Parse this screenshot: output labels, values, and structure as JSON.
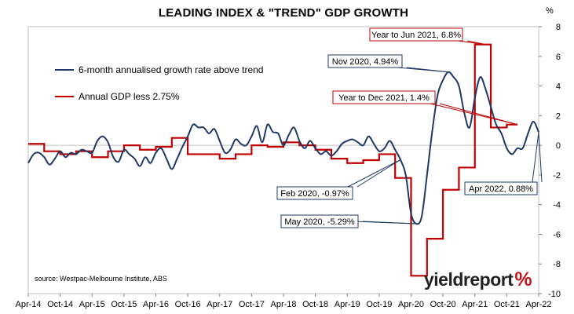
{
  "chart_data": {
    "type": "line",
    "title": "LEADING INDEX & \"TREND\" GDP GROWTH",
    "y_unit": "%",
    "ylim": [
      -10,
      8
    ],
    "y_ticks": [
      8,
      6,
      4,
      2,
      0,
      -2,
      -4,
      -6,
      -8,
      -10
    ],
    "x_ticks": [
      "Apr-14",
      "Oct-14",
      "Apr-15",
      "Oct-15",
      "Apr-16",
      "Oct-16",
      "Apr-17",
      "Oct-17",
      "Apr-18",
      "Oct-18",
      "Apr-19",
      "Oct-19",
      "Apr-20",
      "Oct-20",
      "Apr-21",
      "Oct-21",
      "Apr-22"
    ],
    "grid": false,
    "legend_placement": "top-left",
    "series": [
      {
        "name": "6-month annualised growth rate above trend",
        "color": "#1f3864",
        "points": [
          [
            "2014-04",
            -1.2
          ],
          [
            "2014-05",
            -0.6
          ],
          [
            "2014-06",
            -0.5
          ],
          [
            "2014-07",
            -0.8
          ],
          [
            "2014-08",
            -1.3
          ],
          [
            "2014-09",
            -0.9
          ],
          [
            "2014-10",
            -0.4
          ],
          [
            "2014-11",
            -0.8
          ],
          [
            "2014-12",
            -0.5
          ],
          [
            "2015-01",
            -0.6
          ],
          [
            "2015-02",
            -0.3
          ],
          [
            "2015-03",
            -0.4
          ],
          [
            "2015-04",
            -0.5
          ],
          [
            "2015-05",
            0.3
          ],
          [
            "2015-06",
            0.6
          ],
          [
            "2015-07",
            0.2
          ],
          [
            "2015-08",
            -0.8
          ],
          [
            "2015-09",
            -1.1
          ],
          [
            "2015-10",
            -0.3
          ],
          [
            "2015-11",
            -0.6
          ],
          [
            "2015-12",
            -0.9
          ],
          [
            "2016-01",
            -1.4
          ],
          [
            "2016-02",
            -0.8
          ],
          [
            "2016-03",
            -1.2
          ],
          [
            "2016-04",
            -0.5
          ],
          [
            "2016-05",
            -0.2
          ],
          [
            "2016-06",
            -0.9
          ],
          [
            "2016-07",
            -1.6
          ],
          [
            "2016-08",
            -0.9
          ],
          [
            "2016-09",
            -0.1
          ],
          [
            "2016-10",
            0.6
          ],
          [
            "2016-11",
            1.4
          ],
          [
            "2016-12",
            1.2
          ],
          [
            "2017-01",
            1.2
          ],
          [
            "2017-02",
            0.8
          ],
          [
            "2017-03",
            1.1
          ],
          [
            "2017-04",
            0.3
          ],
          [
            "2017-05",
            -0.5
          ],
          [
            "2017-06",
            -0.3
          ],
          [
            "2017-07",
            0.4
          ],
          [
            "2017-08",
            0.1
          ],
          [
            "2017-09",
            0.0
          ],
          [
            "2017-10",
            0.6
          ],
          [
            "2017-11",
            1.3
          ],
          [
            "2017-12",
            0.2
          ],
          [
            "2018-01",
            1.4
          ],
          [
            "2018-02",
            0.9
          ],
          [
            "2018-03",
            0.8
          ],
          [
            "2018-04",
            0.0
          ],
          [
            "2018-05",
            0.7
          ],
          [
            "2018-06",
            1.2
          ],
          [
            "2018-07",
            0.3
          ],
          [
            "2018-08",
            -0.2
          ],
          [
            "2018-09",
            0.3
          ],
          [
            "2018-10",
            -0.2
          ],
          [
            "2018-11",
            -0.6
          ],
          [
            "2018-12",
            -0.4
          ],
          [
            "2019-01",
            -0.7
          ],
          [
            "2019-02",
            -0.4
          ],
          [
            "2019-03",
            0.1
          ],
          [
            "2019-04",
            0.3
          ],
          [
            "2019-05",
            0.4
          ],
          [
            "2019-06",
            0.2
          ],
          [
            "2019-07",
            0.0
          ],
          [
            "2019-08",
            0.6
          ],
          [
            "2019-09",
            0.1
          ],
          [
            "2019-10",
            -0.4
          ],
          [
            "2019-11",
            -0.2
          ],
          [
            "2019-12",
            0.3
          ],
          [
            "2020-01",
            -0.3
          ],
          [
            "2020-02",
            -0.97
          ],
          [
            "2020-03",
            -2.0
          ],
          [
            "2020-04",
            -4.6
          ],
          [
            "2020-05",
            -5.29
          ],
          [
            "2020-06",
            -4.8
          ],
          [
            "2020-07",
            -2.0
          ],
          [
            "2020-08",
            1.0
          ],
          [
            "2020-09",
            3.4
          ],
          [
            "2020-10",
            4.4
          ],
          [
            "2020-11",
            4.94
          ],
          [
            "2020-12",
            4.6
          ],
          [
            "2021-01",
            4.0
          ],
          [
            "2021-02",
            2.2
          ],
          [
            "2021-03",
            1.2
          ],
          [
            "2021-04",
            3.2
          ],
          [
            "2021-05",
            4.6
          ],
          [
            "2021-06",
            3.8
          ],
          [
            "2021-07",
            2.6
          ],
          [
            "2021-08",
            1.4
          ],
          [
            "2021-09",
            0.8
          ],
          [
            "2021-10",
            -0.2
          ],
          [
            "2021-11",
            -0.6
          ],
          [
            "2021-12",
            -0.2
          ],
          [
            "2022-01",
            -0.2
          ],
          [
            "2022-02",
            0.8
          ],
          [
            "2022-03",
            1.6
          ],
          [
            "2022-04",
            0.88
          ]
        ]
      },
      {
        "name": "Annual GDP less 2.75%",
        "color": "#c00000",
        "steps": [
          [
            "2014-04",
            0.1
          ],
          [
            "2014-07",
            -0.4
          ],
          [
            "2014-10",
            -0.6
          ],
          [
            "2015-01",
            -0.4
          ],
          [
            "2015-04",
            -0.8
          ],
          [
            "2015-07",
            -0.4
          ],
          [
            "2015-10",
            0.0
          ],
          [
            "2016-01",
            -0.3
          ],
          [
            "2016-04",
            -0.1
          ],
          [
            "2016-07",
            0.5
          ],
          [
            "2016-10",
            -0.6
          ],
          [
            "2017-01",
            -0.6
          ],
          [
            "2017-04",
            -0.9
          ],
          [
            "2017-07",
            -0.6
          ],
          [
            "2017-10",
            0.0
          ],
          [
            "2018-01",
            -0.1
          ],
          [
            "2018-04",
            0.2
          ],
          [
            "2018-07",
            0.0
          ],
          [
            "2018-10",
            -0.3
          ],
          [
            "2019-01",
            -0.9
          ],
          [
            "2019-04",
            -1.2
          ],
          [
            "2019-07",
            -1.0
          ],
          [
            "2019-10",
            -0.6
          ],
          [
            "2020-01",
            -2.2
          ],
          [
            "2020-04",
            -8.8
          ],
          [
            "2020-07",
            -6.3
          ],
          [
            "2020-10",
            -3.0
          ],
          [
            "2021-01",
            -1.5
          ],
          [
            "2021-04",
            6.8
          ],
          [
            "2021-07",
            1.2
          ],
          [
            "2021-10",
            1.4
          ],
          [
            "2021-12",
            1.4
          ]
        ]
      }
    ],
    "annotations": [
      {
        "text": "Year to Jun 2021, 6.8%",
        "point": [
          "2021-06",
          6.8
        ],
        "color": "#c00000"
      },
      {
        "text": "Nov 2020, 4.94%",
        "point": [
          "2020-11",
          4.94
        ],
        "color": "#1f3864"
      },
      {
        "text": "Year to Dec 2021, 1.4%",
        "point": [
          "2021-12",
          1.4
        ],
        "color": "#c00000"
      },
      {
        "text": "Feb 2020, -0.97%",
        "point": [
          "2020-02",
          -0.97
        ],
        "color": "#1f3864"
      },
      {
        "text": "May 2020, -5.29%",
        "point": [
          "2020-05",
          -5.29
        ],
        "color": "#1f3864"
      },
      {
        "text": "Apr 2022, 0.88%",
        "point": [
          "2022-04",
          0.88
        ],
        "color": "#1f3864"
      }
    ],
    "source": "source: Westpac-Melbourne Institute, ABS"
  },
  "brand": {
    "part1": "yield",
    "part2": "report",
    "part3": "%"
  }
}
